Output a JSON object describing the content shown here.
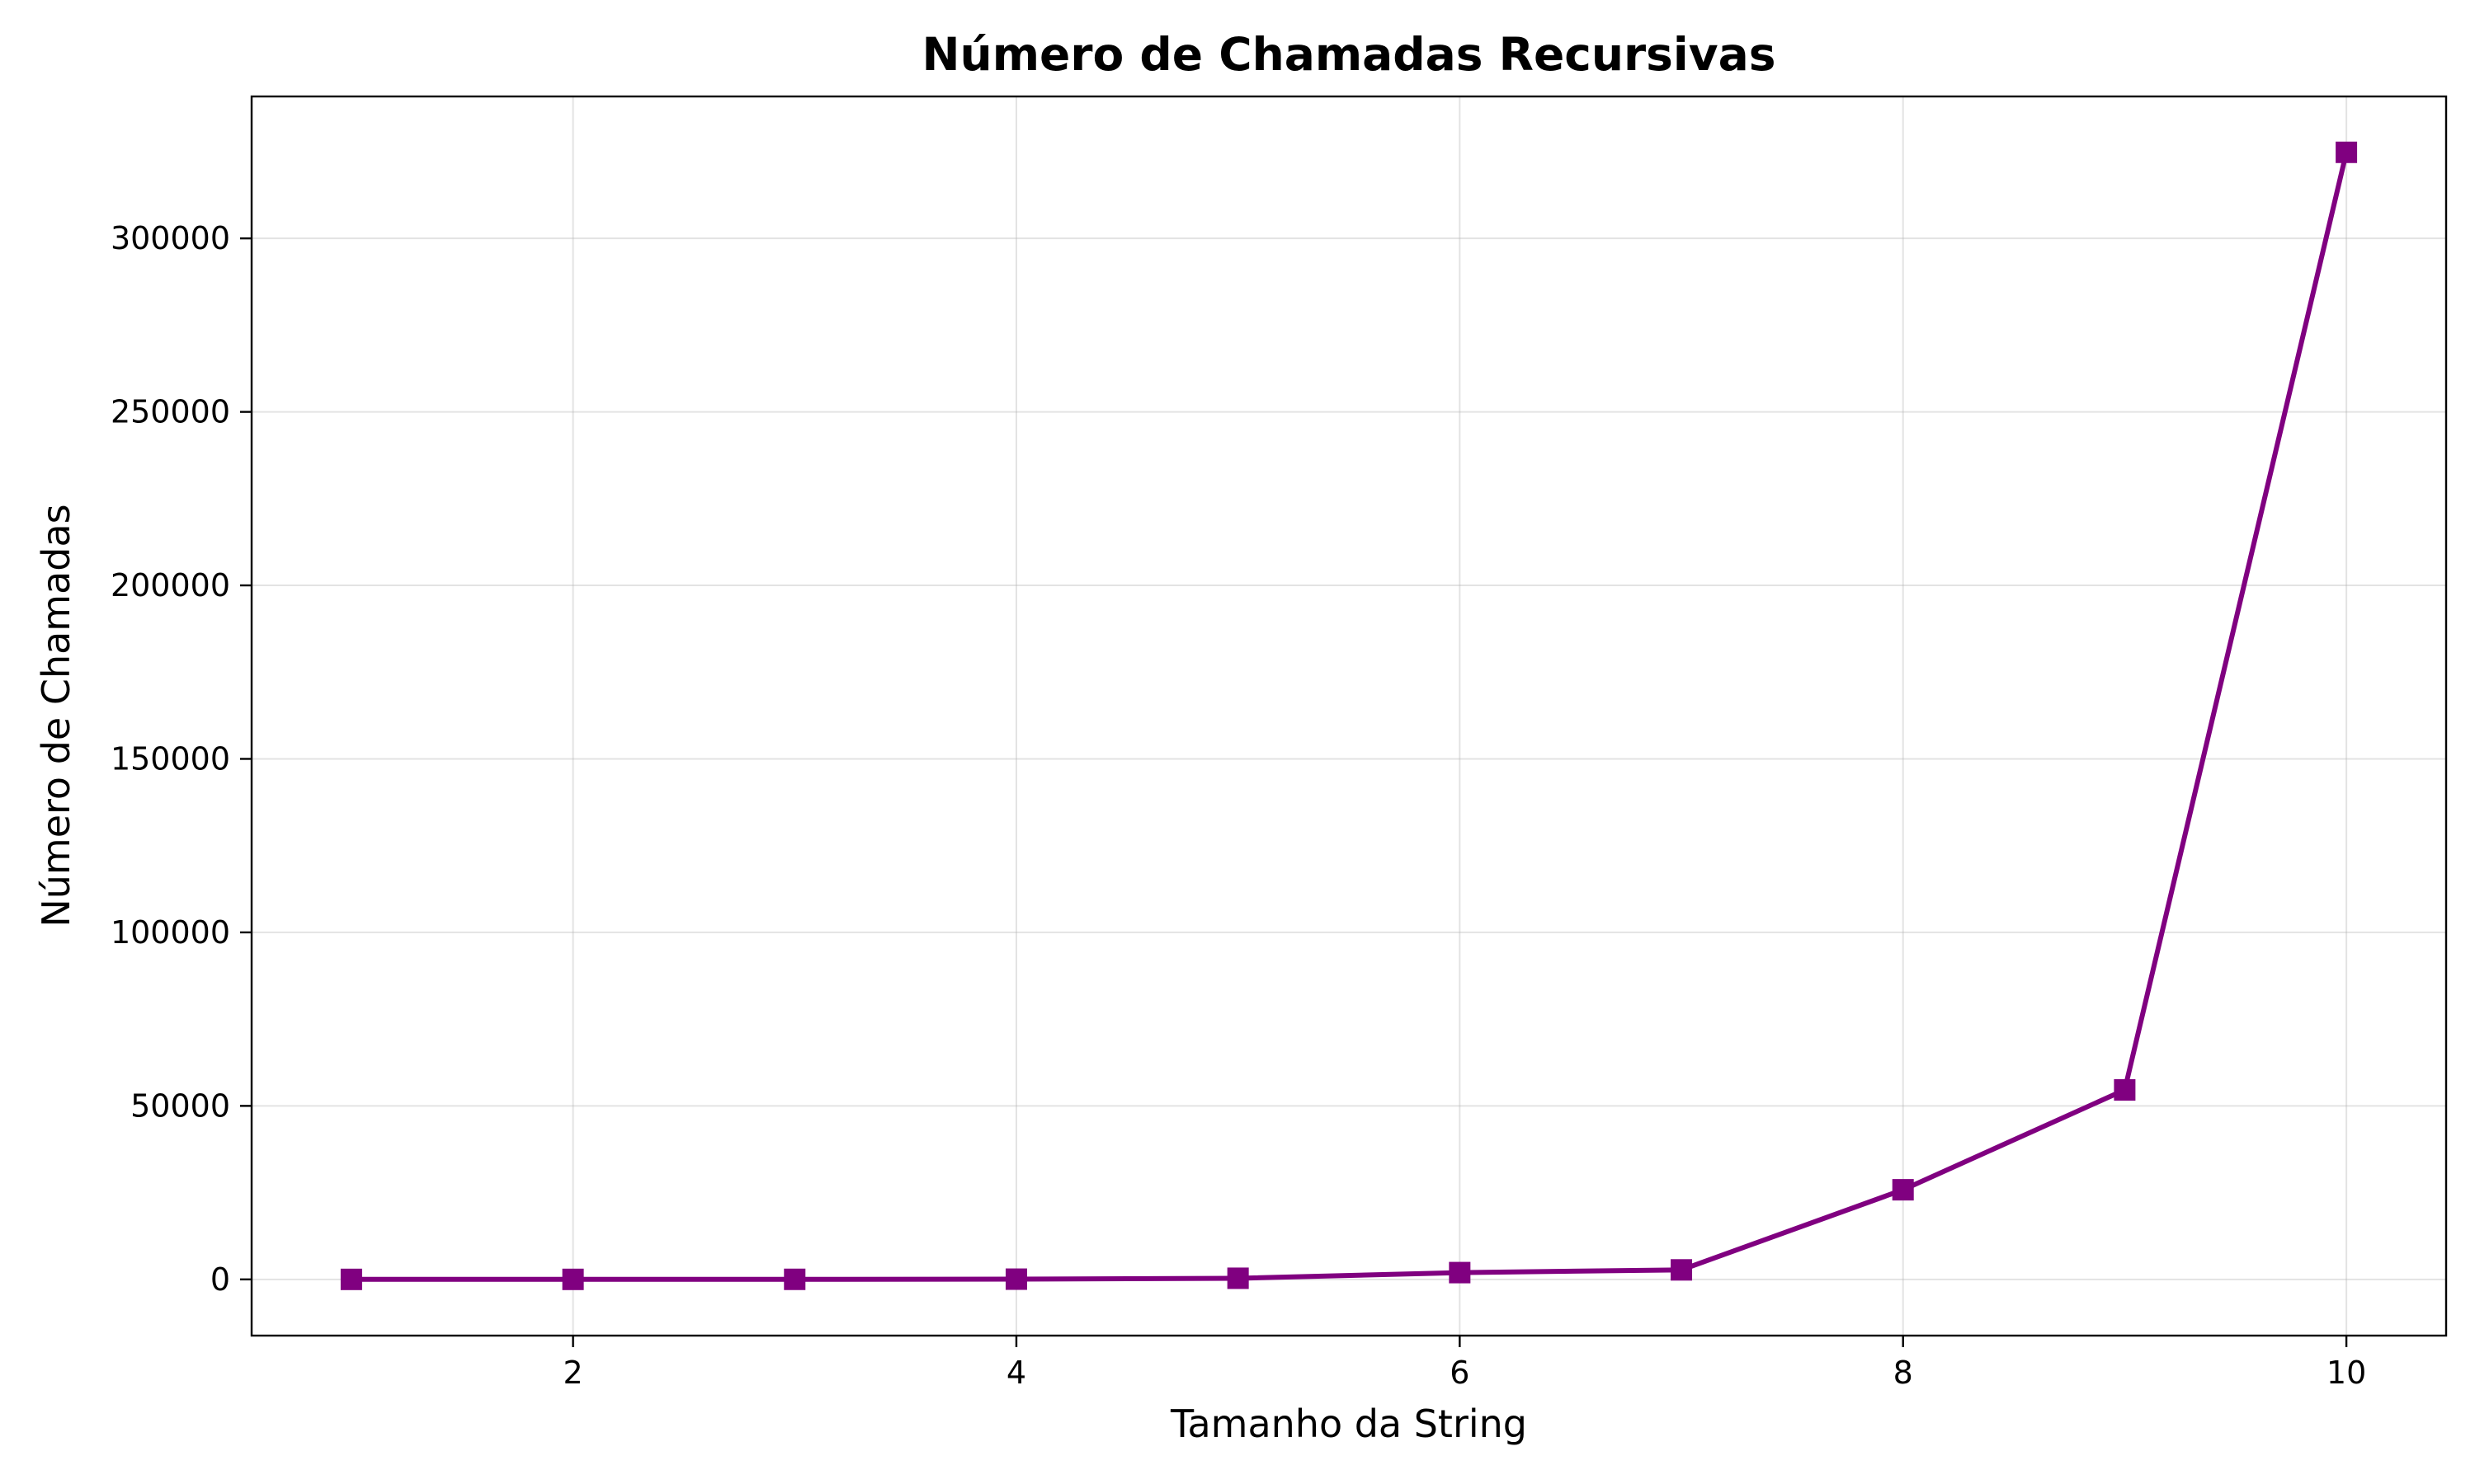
{
  "chart_data": {
    "type": "line",
    "title": "Número de Chamadas Recursivas",
    "xlabel": "Tamanho da String",
    "ylabel": "Número de Chamadas",
    "x": [
      1,
      2,
      3,
      4,
      5,
      6,
      7,
      8,
      9,
      10
    ],
    "series": [
      {
        "values": [
          1,
          4,
          15,
          64,
          325,
          1956,
          2738,
          25825,
          54600,
          324800
        ],
        "color": "#800080",
        "marker": "square"
      }
    ],
    "xlim": [
      0.55,
      10.45
    ],
    "ylim": [
      -16200,
      340900
    ],
    "xticks": [
      2,
      4,
      6,
      8,
      10
    ],
    "yticks": [
      0,
      50000,
      100000,
      150000,
      200000,
      250000,
      300000
    ],
    "xtick_labels": [
      "2",
      "4",
      "6",
      "8",
      "10"
    ],
    "ytick_labels": [
      "0",
      "50000",
      "100000",
      "150000",
      "200000",
      "250000",
      "300000"
    ],
    "grid": true
  }
}
